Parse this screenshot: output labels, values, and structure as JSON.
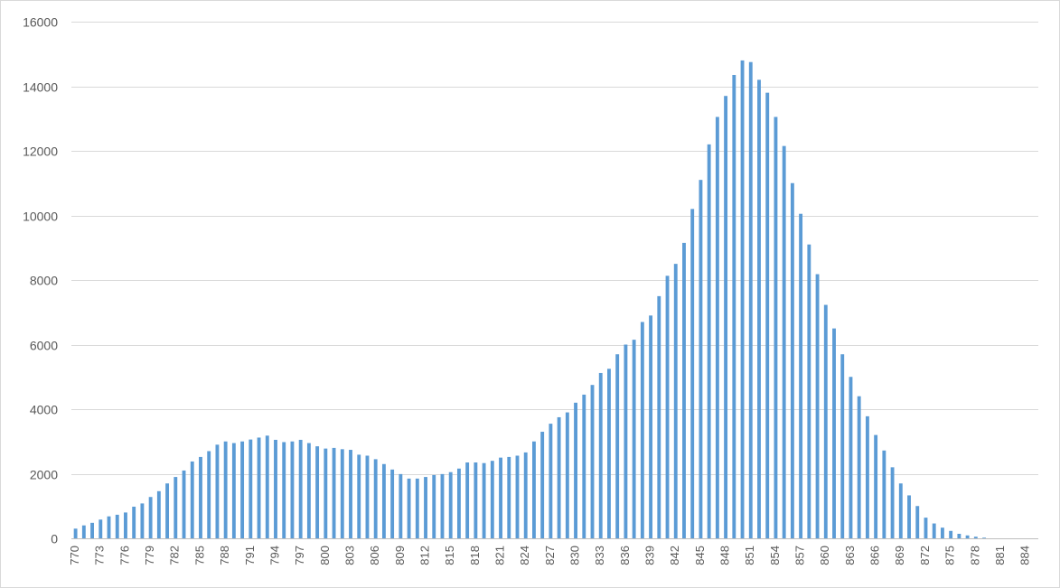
{
  "chart_data": {
    "type": "bar",
    "title": "",
    "xlabel": "",
    "ylabel": "",
    "ylim": [
      0,
      16000
    ],
    "y_ticks": [
      0,
      2000,
      4000,
      6000,
      8000,
      10000,
      12000,
      14000,
      16000
    ],
    "grid": true,
    "legend": "none",
    "bar_color": "#5b9bd5",
    "x_tick_every": 3,
    "categories": [
      770,
      771,
      772,
      773,
      774,
      775,
      776,
      777,
      778,
      779,
      780,
      781,
      782,
      783,
      784,
      785,
      786,
      787,
      788,
      789,
      790,
      791,
      792,
      793,
      794,
      795,
      796,
      797,
      798,
      799,
      800,
      801,
      802,
      803,
      804,
      805,
      806,
      807,
      808,
      809,
      810,
      811,
      812,
      813,
      814,
      815,
      816,
      817,
      818,
      819,
      820,
      821,
      822,
      823,
      824,
      825,
      826,
      827,
      828,
      829,
      830,
      831,
      832,
      833,
      834,
      835,
      836,
      837,
      838,
      839,
      840,
      841,
      842,
      843,
      844,
      845,
      846,
      847,
      848,
      849,
      850,
      851,
      852,
      853,
      854,
      855,
      856,
      857,
      858,
      859,
      860,
      861,
      862,
      863,
      864,
      865,
      866,
      867,
      868,
      869,
      870,
      871,
      872,
      873,
      874,
      875,
      876,
      877,
      878,
      879,
      880,
      881,
      882,
      883,
      884,
      885
    ],
    "values": [
      300,
      400,
      480,
      580,
      680,
      730,
      800,
      980,
      1080,
      1280,
      1460,
      1700,
      1900,
      2100,
      2380,
      2520,
      2700,
      2900,
      3000,
      2950,
      3000,
      3060,
      3120,
      3180,
      3050,
      2980,
      3000,
      3050,
      2950,
      2850,
      2780,
      2800,
      2760,
      2740,
      2590,
      2560,
      2450,
      2300,
      2130,
      1990,
      1850,
      1850,
      1900,
      1960,
      1990,
      2050,
      2160,
      2350,
      2350,
      2330,
      2400,
      2500,
      2520,
      2560,
      2660,
      3000,
      3300,
      3550,
      3750,
      3900,
      4200,
      4450,
      4750,
      5120,
      5250,
      5700,
      6000,
      6150,
      6700,
      6900,
      7500,
      8130,
      8500,
      9150,
      10200,
      11100,
      12200,
      13050,
      13700,
      14350,
      14800,
      14750,
      14200,
      13800,
      13050,
      12150,
      11000,
      10050,
      9100,
      8180,
      7230,
      6500,
      5700,
      5000,
      4400,
      3780,
      3200,
      2720,
      2200,
      1700,
      1330,
      1000,
      640,
      460,
      330,
      230,
      140,
      90,
      50,
      20,
      0,
      0,
      0,
      0,
      0,
      0
    ]
  }
}
